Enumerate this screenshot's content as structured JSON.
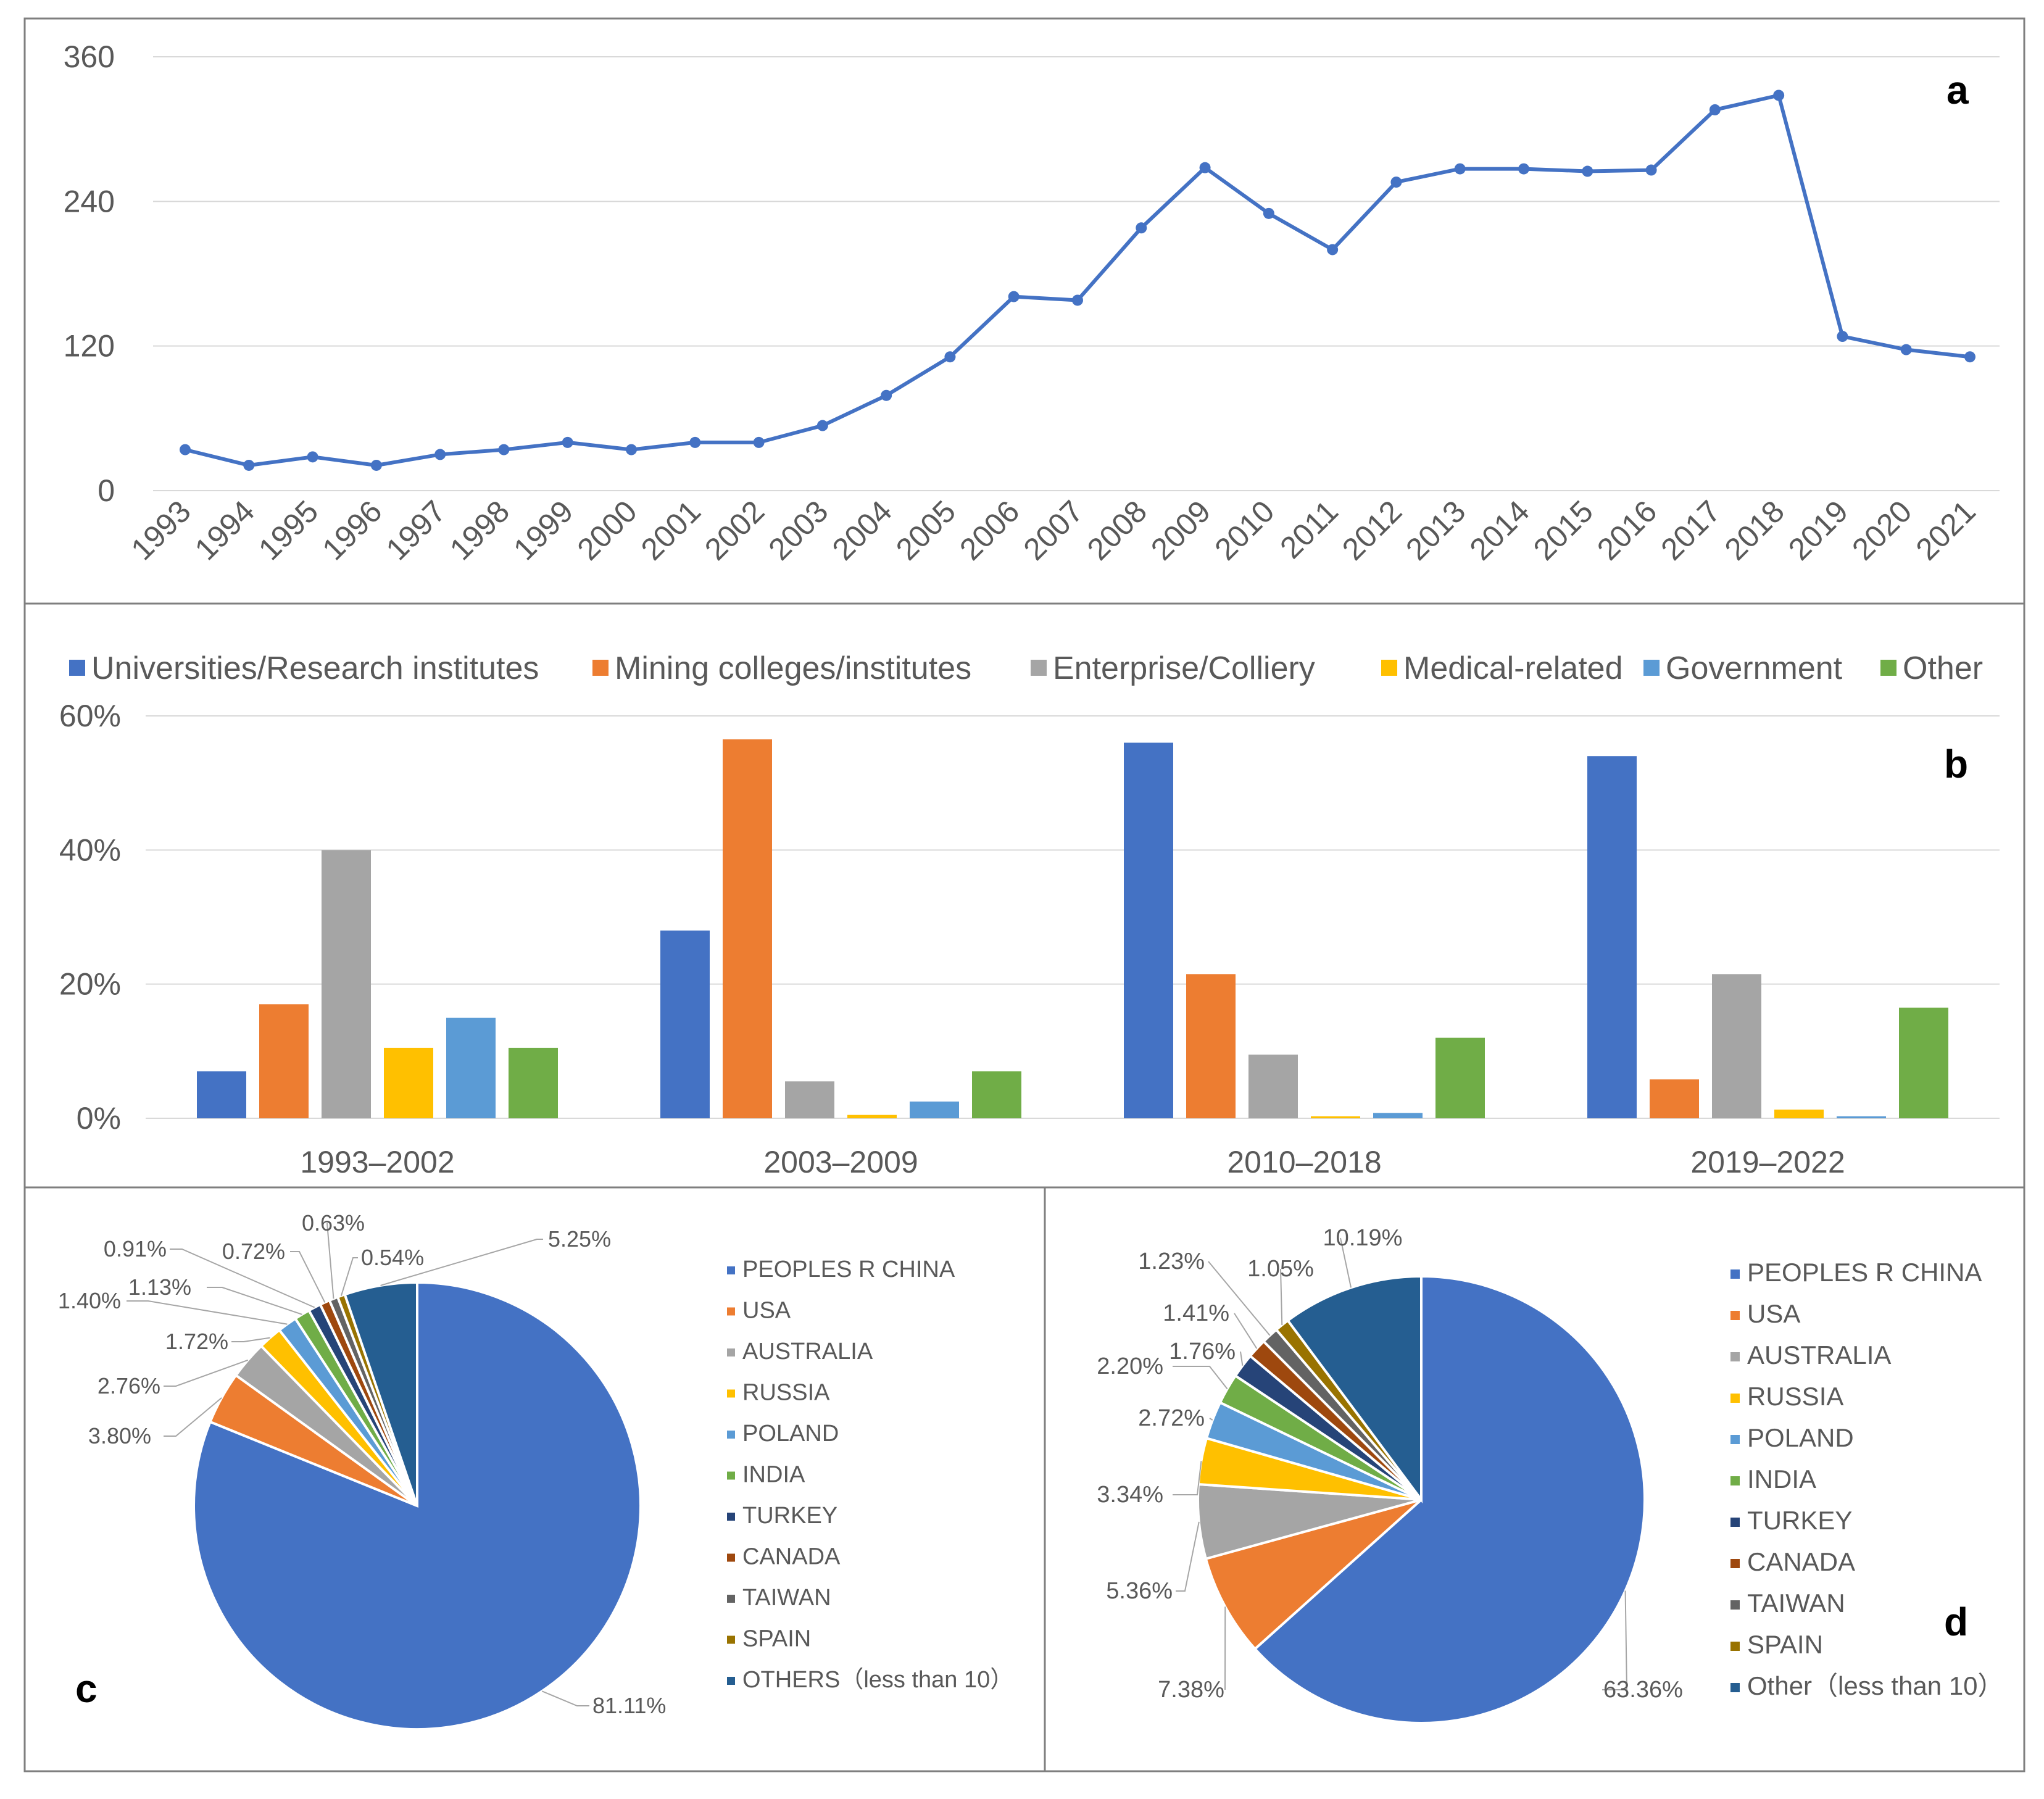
{
  "panels": {
    "a": "a",
    "b": "b",
    "c": "c",
    "d": "d"
  },
  "chart_data": [
    {
      "panel": "a",
      "type": "line",
      "title": "",
      "xlabel": "",
      "ylabel": "",
      "x": [
        "1993",
        "1994",
        "1995",
        "1996",
        "1997",
        "1998",
        "1999",
        "2000",
        "2001",
        "2002",
        "2003",
        "2004",
        "2005",
        "2006",
        "2007",
        "2008",
        "2009",
        "2010",
        "2011",
        "2012",
        "2013",
        "2014",
        "2015",
        "2016",
        "2017",
        "2018",
        "2019",
        "2020",
        "2021"
      ],
      "values": [
        34,
        21,
        28,
        21,
        30,
        34,
        40,
        34,
        40,
        40,
        54,
        79,
        111,
        161,
        158,
        218,
        268,
        230,
        200,
        256,
        267,
        267,
        265,
        266,
        316,
        328,
        128,
        117,
        111
      ],
      "ylim": [
        0,
        360
      ],
      "yticks": [
        "0",
        "120",
        "240",
        "360"
      ],
      "grid": true,
      "color": "#4472C4"
    },
    {
      "panel": "b",
      "type": "bar",
      "title": "",
      "xlabel": "",
      "ylabel": "",
      "categories": [
        "1993–2002",
        "2003–2009",
        "2010–2018",
        "2019–2022"
      ],
      "series": [
        {
          "name": "Universities/Research institutes",
          "color": "#4472C4",
          "values": [
            7,
            28,
            56,
            54
          ]
        },
        {
          "name": "Mining colleges/institutes",
          "color": "#ED7D31",
          "values": [
            17,
            56.5,
            21.5,
            5.8
          ]
        },
        {
          "name": "Enterprise/Colliery",
          "color": "#A5A5A5",
          "values": [
            40,
            5.5,
            9.5,
            21.5
          ]
        },
        {
          "name": "Medical-related",
          "color": "#FFC000",
          "values": [
            10.5,
            0.5,
            0.3,
            1.3
          ]
        },
        {
          "name": "Government",
          "color": "#5B9BD5",
          "values": [
            15,
            2.5,
            0.8,
            0.3
          ]
        },
        {
          "name": "Other",
          "color": "#70AD47",
          "values": [
            10.5,
            7,
            12,
            16.5
          ]
        }
      ],
      "ylim": [
        0,
        60
      ],
      "yticks": [
        "0%",
        "20%",
        "40%",
        "60%"
      ],
      "legend": "top",
      "grid": true
    },
    {
      "panel": "c",
      "type": "pie",
      "labels": [
        "PEOPLES R CHINA",
        "USA",
        "AUSTRALIA",
        "RUSSIA",
        "POLAND",
        "INDIA",
        "TURKEY",
        "CANADA",
        "TAIWAN",
        "SPAIN",
        "OTHERS（less than 10）"
      ],
      "values": [
        81.11,
        3.8,
        2.76,
        1.72,
        1.4,
        1.13,
        0.91,
        0.72,
        0.63,
        0.54,
        5.25
      ],
      "value_labels": [
        "81.11%",
        "3.80%",
        "2.76%",
        "1.72%",
        "1.40%",
        "1.13%",
        "0.91%",
        "0.72%",
        "0.63%",
        "0.54%",
        "5.25%"
      ],
      "colors": [
        "#4472C4",
        "#ED7D31",
        "#A5A5A5",
        "#FFC000",
        "#5B9BD5",
        "#70AD47",
        "#264478",
        "#9E480E",
        "#636363",
        "#997300",
        "#255E91"
      ],
      "legend": "right"
    },
    {
      "panel": "d",
      "type": "pie",
      "labels": [
        "PEOPLES R CHINA",
        "USA",
        "AUSTRALIA",
        "RUSSIA",
        "POLAND",
        "INDIA",
        "TURKEY",
        "CANADA",
        "TAIWAN",
        "SPAIN",
        "Other（less than 10）"
      ],
      "values": [
        63.36,
        7.38,
        5.36,
        3.34,
        2.72,
        2.2,
        1.76,
        1.41,
        1.23,
        1.05,
        10.19
      ],
      "value_labels": [
        "63.36%",
        "7.38%",
        "5.36%",
        "3.34%",
        "2.72%",
        "2.20%",
        "1.76%",
        "1.41%",
        "1.23%",
        "1.05%",
        "10.19%"
      ],
      "colors": [
        "#4472C4",
        "#ED7D31",
        "#A5A5A5",
        "#FFC000",
        "#5B9BD5",
        "#70AD47",
        "#264478",
        "#9E480E",
        "#636363",
        "#997300",
        "#255E91"
      ],
      "legend": "right"
    }
  ]
}
